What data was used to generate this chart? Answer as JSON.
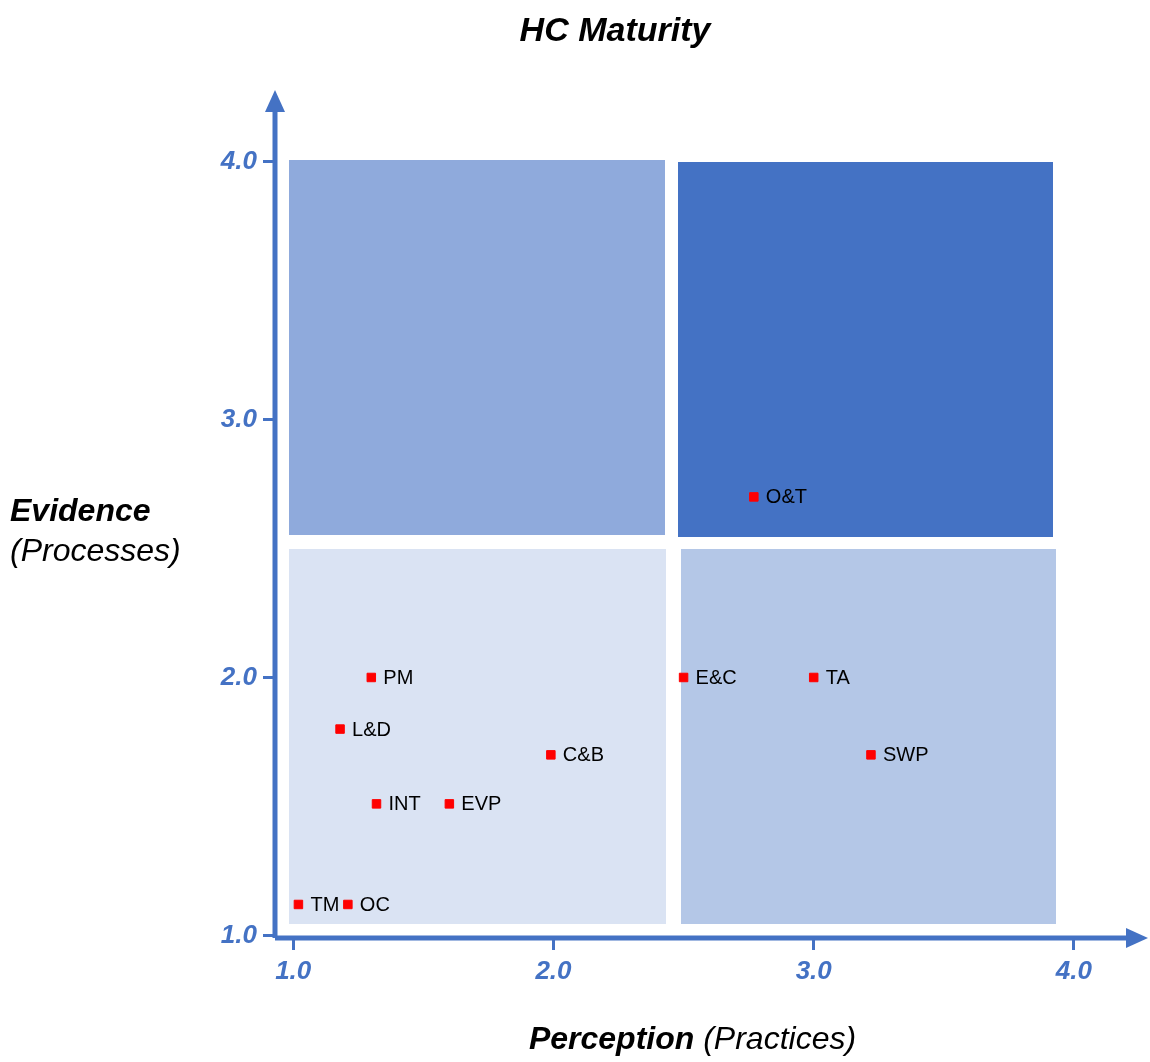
{
  "chart_data": {
    "type": "scatter",
    "title": "HC Maturity",
    "xlabel": "Perception (Practices)",
    "ylabel": "Evidence (Processes)",
    "xlim": [
      0.93,
      4.2
    ],
    "ylim": [
      0.99,
      4.2
    ],
    "xticks": [
      {
        "value": 1,
        "label": "1.0"
      },
      {
        "value": 2,
        "label": "2.0"
      },
      {
        "value": 3,
        "label": "3.0"
      },
      {
        "value": 4,
        "label": "4.0"
      }
    ],
    "yticks": [
      {
        "value": 1,
        "label": "1.0"
      },
      {
        "value": 2,
        "label": "2.0"
      },
      {
        "value": 3,
        "label": "3.0"
      },
      {
        "value": 4,
        "label": "4.0"
      }
    ],
    "grid": false,
    "legend": false,
    "marker": "square",
    "series": [
      {
        "name": "O&T",
        "color": "#ff0000",
        "x": [
          2.77
        ],
        "values": [
          2.7
        ]
      },
      {
        "name": "PM",
        "color": "#ff0000",
        "x": [
          1.3
        ],
        "values": [
          2.0
        ]
      },
      {
        "name": "L&D",
        "color": "#ff0000",
        "x": [
          1.18
        ],
        "values": [
          1.8
        ]
      },
      {
        "name": "C&B",
        "color": "#ff0000",
        "x": [
          1.99
        ],
        "values": [
          1.7
        ]
      },
      {
        "name": "INT",
        "color": "#ff0000",
        "x": [
          1.32
        ],
        "values": [
          1.51
        ]
      },
      {
        "name": "EVP",
        "color": "#ff0000",
        "x": [
          1.6
        ],
        "values": [
          1.51
        ]
      },
      {
        "name": "TM",
        "color": "#ff0000",
        "x": [
          1.02
        ],
        "values": [
          1.12
        ]
      },
      {
        "name": "OC",
        "color": "#ff0000",
        "x": [
          1.21
        ],
        "values": [
          1.12
        ]
      },
      {
        "name": "E&C",
        "color": "#ff0000",
        "x": [
          2.5
        ],
        "values": [
          2.0
        ]
      },
      {
        "name": "TA",
        "color": "#ff0000",
        "x": [
          3.0
        ],
        "values": [
          2.0
        ]
      },
      {
        "name": "SWP",
        "color": "#ff0000",
        "x": [
          3.22
        ],
        "values": [
          1.7
        ]
      }
    ]
  }
}
